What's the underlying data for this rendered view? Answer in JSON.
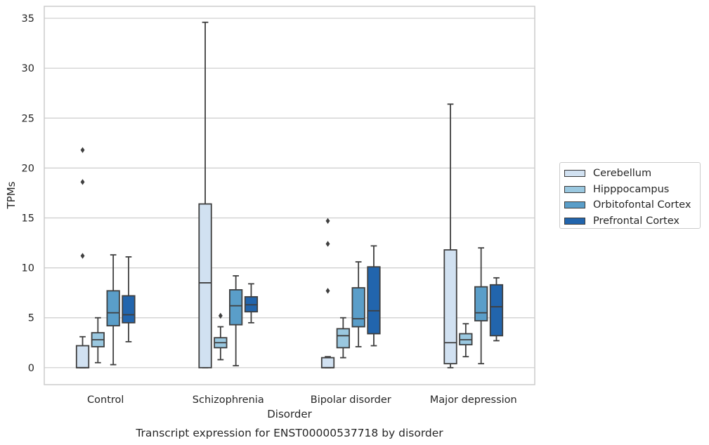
{
  "chart_data": {
    "type": "box",
    "title": "Transcript expression for ENST00000537718 by disorder",
    "xlabel": "Disorder",
    "ylabel": "TPMs",
    "ylim": [
      -1.7,
      36.2
    ],
    "yticks": [
      0,
      5,
      10,
      15,
      20,
      25,
      30,
      35
    ],
    "categories": [
      "Control",
      "Schizophrenia",
      "Bipolar disorder",
      "Major depression"
    ],
    "legend_position": "right",
    "grid": "horizontal",
    "series": [
      {
        "name": "Cerebellum",
        "color": "#d1e1f1",
        "boxes": [
          {
            "low": 0.0,
            "q1": 0.0,
            "median": 0.0,
            "q3": 2.2,
            "high": 3.1,
            "outliers": [
              11.2,
              18.6,
              21.8
            ]
          },
          {
            "low": 0.0,
            "q1": 0.0,
            "median": 8.5,
            "q3": 16.4,
            "high": 34.6,
            "outliers": []
          },
          {
            "low": 0.0,
            "q1": 0.0,
            "median": 0.0,
            "q3": 1.0,
            "high": 1.1,
            "outliers": [
              7.7,
              12.4,
              14.7
            ]
          },
          {
            "low": 0.0,
            "q1": 0.4,
            "median": 2.5,
            "q3": 11.8,
            "high": 26.4,
            "outliers": []
          }
        ]
      },
      {
        "name": "Hipppocampus",
        "color": "#9ac8e0",
        "boxes": [
          {
            "low": 0.5,
            "q1": 2.1,
            "median": 2.8,
            "q3": 3.5,
            "high": 5.0,
            "outliers": []
          },
          {
            "low": 0.8,
            "q1": 2.0,
            "median": 2.5,
            "q3": 3.0,
            "high": 4.1,
            "outliers": [
              5.2
            ]
          },
          {
            "low": 1.0,
            "q1": 2.0,
            "median": 3.2,
            "q3": 3.9,
            "high": 5.0,
            "outliers": []
          },
          {
            "low": 1.1,
            "q1": 2.3,
            "median": 2.8,
            "q3": 3.4,
            "high": 4.4,
            "outliers": []
          }
        ]
      },
      {
        "name": "Orbitofontal Cortex",
        "color": "#5a9ec9",
        "boxes": [
          {
            "low": 0.3,
            "q1": 4.2,
            "median": 5.5,
            "q3": 7.7,
            "high": 11.3,
            "outliers": []
          },
          {
            "low": 0.2,
            "q1": 4.3,
            "median": 6.2,
            "q3": 7.8,
            "high": 9.2,
            "outliers": []
          },
          {
            "low": 2.1,
            "q1": 4.1,
            "median": 4.9,
            "q3": 8.0,
            "high": 10.6,
            "outliers": []
          },
          {
            "low": 0.4,
            "q1": 4.7,
            "median": 5.5,
            "q3": 8.1,
            "high": 12.0,
            "outliers": []
          }
        ]
      },
      {
        "name": "Prefrontal Cortex",
        "color": "#2265ad",
        "boxes": [
          {
            "low": 2.6,
            "q1": 4.5,
            "median": 5.3,
            "q3": 7.2,
            "high": 11.1,
            "outliers": []
          },
          {
            "low": 4.5,
            "q1": 5.6,
            "median": 6.3,
            "q3": 7.1,
            "high": 8.4,
            "outliers": []
          },
          {
            "low": 2.2,
            "q1": 3.4,
            "median": 5.7,
            "q3": 10.1,
            "high": 12.2,
            "outliers": []
          },
          {
            "low": 2.7,
            "q1": 3.2,
            "median": 6.1,
            "q3": 8.3,
            "high": 9.0,
            "outliers": []
          }
        ]
      }
    ]
  }
}
